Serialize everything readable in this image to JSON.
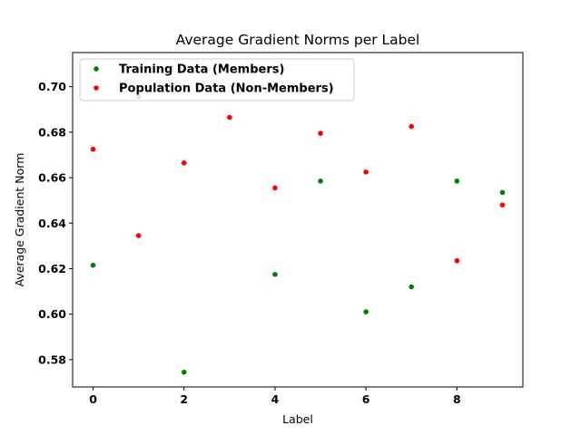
{
  "chart_data": {
    "type": "scatter",
    "title": "Average Gradient Norms per Label",
    "xlabel": "Label",
    "ylabel": "Average Gradient Norm",
    "xlim": [
      -0.45,
      9.45
    ],
    "ylim": [
      0.568,
      0.715
    ],
    "xticks": [
      0,
      2,
      4,
      6,
      8
    ],
    "xtick_labels": [
      "0",
      "2",
      "4",
      "6",
      "8"
    ],
    "yticks": [
      0.58,
      0.6,
      0.62,
      0.64,
      0.66,
      0.68,
      0.7
    ],
    "ytick_labels": [
      "0.58",
      "0.60",
      "0.62",
      "0.64",
      "0.66",
      "0.68",
      "0.70"
    ],
    "grid": false,
    "legend_position": "top-left",
    "series": [
      {
        "name": "Training Data (Members)",
        "color": "#008000",
        "x": [
          0,
          1,
          2,
          4,
          5,
          6,
          7,
          8,
          9
        ],
        "y": [
          0.6215,
          0.6955,
          0.5745,
          0.6175,
          0.6585,
          0.601,
          0.612,
          0.6585,
          0.6535
        ]
      },
      {
        "name": "Population Data (Non-Members)",
        "color": "#ff0000",
        "x": [
          0,
          1,
          2,
          3,
          4,
          5,
          6,
          7,
          8,
          9
        ],
        "y": [
          0.6725,
          0.6345,
          0.6665,
          0.6865,
          0.6555,
          0.6795,
          0.6625,
          0.6825,
          0.6235,
          0.648
        ]
      }
    ]
  }
}
